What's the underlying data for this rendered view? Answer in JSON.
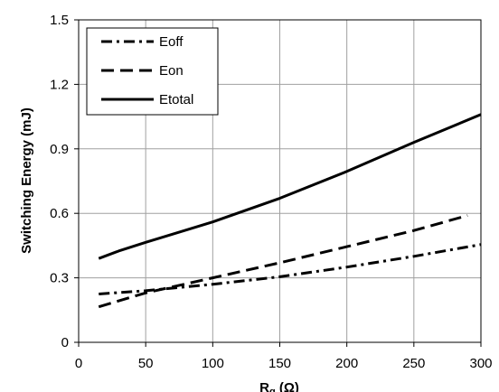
{
  "chart_data": {
    "type": "line",
    "xlabel_main": "R",
    "xlabel_sub": "g",
    "xlabel_unit": " (Ω)",
    "ylabel": "Switching Energy (mJ)",
    "xlim": [
      0,
      300
    ],
    "ylim": [
      0,
      1.5
    ],
    "xticks": [
      0,
      50,
      100,
      150,
      200,
      250,
      300
    ],
    "yticks": [
      0,
      0.3,
      0.6,
      0.9,
      1.2,
      1.5
    ],
    "ytick_labels": [
      "0",
      "0.3",
      "0.6",
      "0.9",
      "1.2",
      "1.5"
    ],
    "grid": true,
    "legend_position": "top-left",
    "series": [
      {
        "name": "Eoff",
        "style": "dashdot",
        "x": [
          15,
          50,
          100,
          150,
          200,
          250,
          300
        ],
        "y": [
          0.225,
          0.24,
          0.27,
          0.305,
          0.35,
          0.4,
          0.455
        ]
      },
      {
        "name": "Eon",
        "style": "dash",
        "x": [
          15,
          50,
          100,
          150,
          200,
          250,
          290
        ],
        "y": [
          0.165,
          0.23,
          0.3,
          0.37,
          0.445,
          0.52,
          0.59
        ]
      },
      {
        "name": "Etotal",
        "style": "solid",
        "x": [
          15,
          30,
          50,
          100,
          150,
          200,
          250,
          300
        ],
        "y": [
          0.39,
          0.425,
          0.465,
          0.56,
          0.67,
          0.795,
          0.93,
          1.06
        ]
      }
    ]
  }
}
